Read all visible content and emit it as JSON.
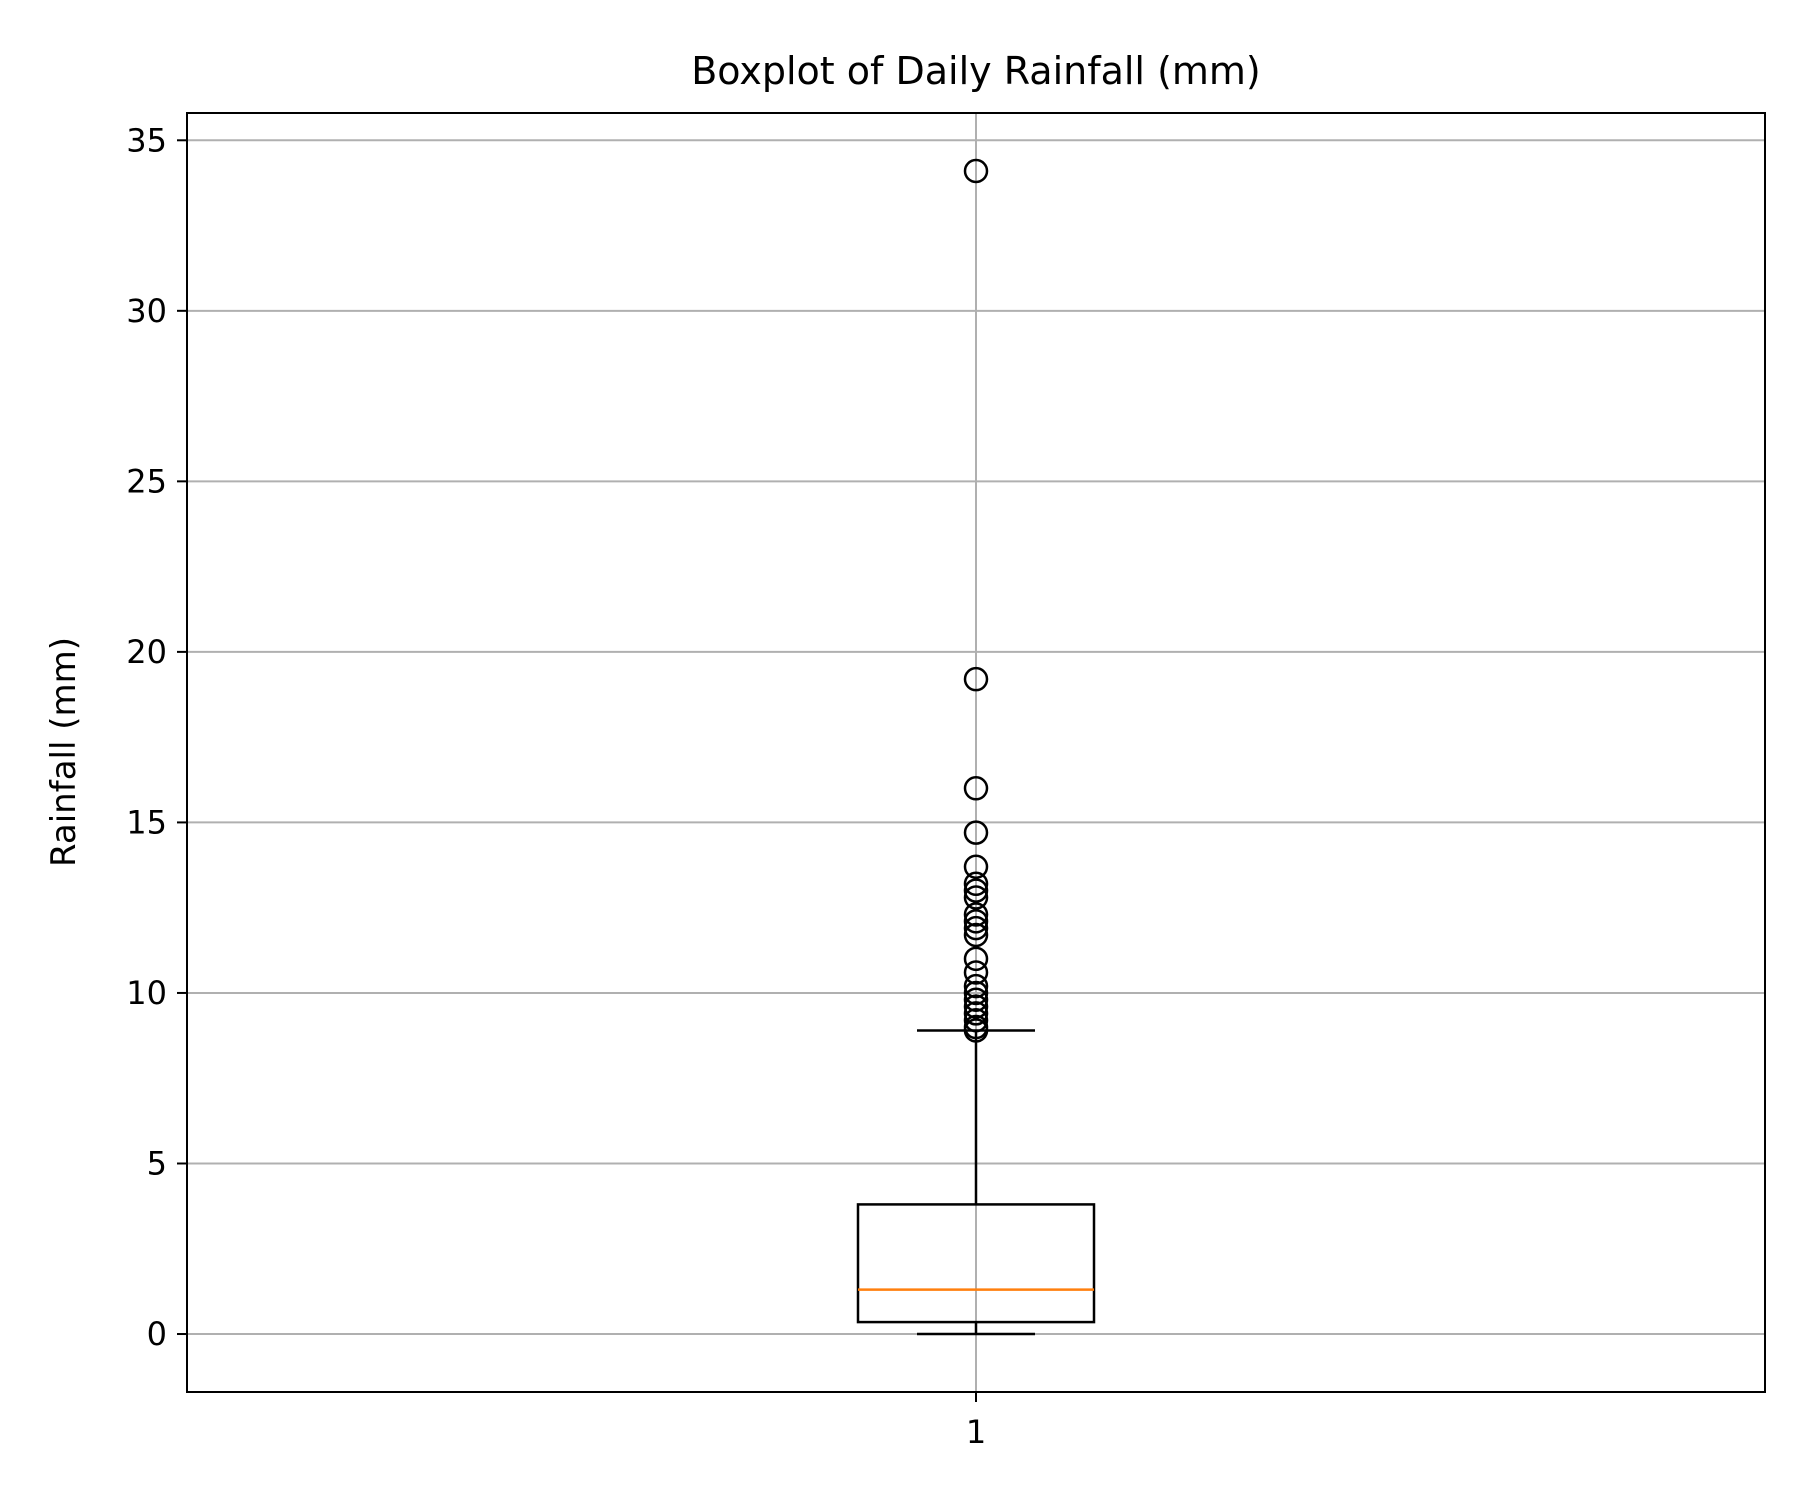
{
  "chart_data": {
    "type": "box",
    "title": "Boxplot of Daily Rainfall (mm)",
    "xlabel": "",
    "ylabel": "Rainfall (mm)",
    "categories": [
      "1"
    ],
    "ylim": [
      -1.7,
      35.8
    ],
    "yticks": [
      0,
      5,
      10,
      15,
      20,
      25,
      30,
      35
    ],
    "ytick_labels": [
      "0",
      "5",
      "10",
      "15",
      "20",
      "25",
      "30",
      "35"
    ],
    "grid": true,
    "boxes": [
      {
        "category": "1",
        "whisker_low": 0.0,
        "q1": 0.35,
        "median": 1.3,
        "q3": 3.8,
        "whisker_high": 8.9,
        "outliers": [
          8.9,
          9.0,
          9.2,
          9.4,
          9.6,
          9.8,
          10.0,
          10.2,
          10.6,
          11.0,
          11.7,
          11.9,
          12.1,
          12.3,
          12.8,
          13.0,
          13.2,
          13.7,
          14.7,
          16.0,
          19.2,
          34.1
        ]
      }
    ],
    "colors": {
      "box": "#000000",
      "median": "#ff7f0e",
      "grid": "#b0b0b0",
      "flier": "#000000"
    }
  }
}
